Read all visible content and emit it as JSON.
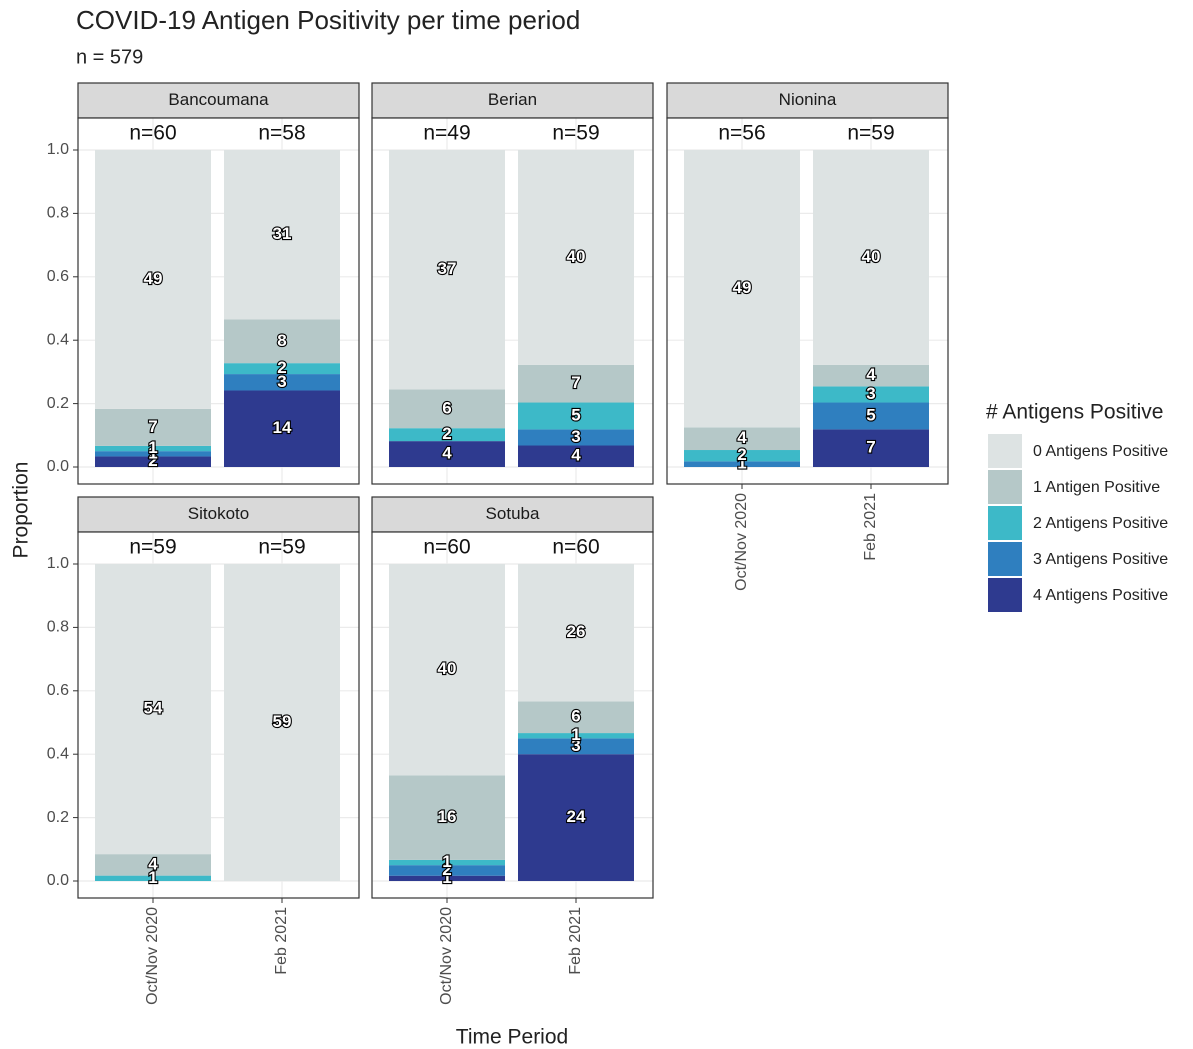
{
  "chart_data": {
    "type": "bar",
    "stacked": true,
    "title": "COVID-19 Antigen Positivity per time period",
    "subtitle": "n = 579",
    "xlabel": "Time Period",
    "ylabel": "Proportion",
    "ylim": [
      0,
      1
    ],
    "yticks": [
      {
        "value": 0,
        "label": "0.0"
      },
      {
        "value": 0.2,
        "label": "0.2"
      },
      {
        "value": 0.4,
        "label": "0.4"
      },
      {
        "value": 0.6,
        "label": "0.6"
      },
      {
        "value": 0.8,
        "label": "0.8"
      },
      {
        "value": 1,
        "label": "1.0"
      }
    ],
    "grid": true,
    "categories": [
      "Oct/Nov 2020",
      "Feb 2021"
    ],
    "legend_title": "# Antigens Positive",
    "legend_position": "right",
    "series": [
      {
        "name": "0 Antigens Positive",
        "color": "#dde3e3"
      },
      {
        "name": "1 Antigen Positive",
        "color": "#b5c8c8"
      },
      {
        "name": "2 Antigens Positive",
        "color": "#3db9c8"
      },
      {
        "name": "3 Antigens Positive",
        "color": "#2f7fbf"
      },
      {
        "name": "4 Antigens Positive",
        "color": "#2e3a8f"
      }
    ],
    "facets": [
      {
        "name": "Bancoumana",
        "n": [
          60,
          58
        ],
        "n_labels": [
          "n=60",
          "n=58"
        ],
        "counts": [
          [
            49,
            31
          ],
          [
            7,
            8
          ],
          [
            1,
            2
          ],
          [
            1,
            3
          ],
          [
            2,
            14
          ]
        ]
      },
      {
        "name": "Berian",
        "n": [
          49,
          59
        ],
        "n_labels": [
          "n=49",
          "n=59"
        ],
        "counts": [
          [
            37,
            40
          ],
          [
            6,
            7
          ],
          [
            2,
            5
          ],
          [
            null,
            3
          ],
          [
            4,
            4
          ]
        ]
      },
      {
        "name": "Nionina",
        "n": [
          56,
          59
        ],
        "n_labels": [
          "n=56",
          "n=59"
        ],
        "counts": [
          [
            49,
            40
          ],
          [
            4,
            4
          ],
          [
            2,
            3
          ],
          [
            1,
            5
          ],
          [
            null,
            7
          ]
        ]
      },
      {
        "name": "Sitokoto",
        "n": [
          59,
          59
        ],
        "n_labels": [
          "n=59",
          "n=59"
        ],
        "counts": [
          [
            54,
            59
          ],
          [
            4,
            null
          ],
          [
            1,
            null
          ],
          [
            null,
            null
          ],
          [
            null,
            null
          ]
        ]
      },
      {
        "name": "Sotuba",
        "n": [
          60,
          60
        ],
        "n_labels": [
          "n=60",
          "n=60"
        ],
        "counts": [
          [
            40,
            26
          ],
          [
            16,
            6
          ],
          [
            1,
            1
          ],
          [
            2,
            3
          ],
          [
            1,
            24
          ]
        ]
      }
    ]
  }
}
